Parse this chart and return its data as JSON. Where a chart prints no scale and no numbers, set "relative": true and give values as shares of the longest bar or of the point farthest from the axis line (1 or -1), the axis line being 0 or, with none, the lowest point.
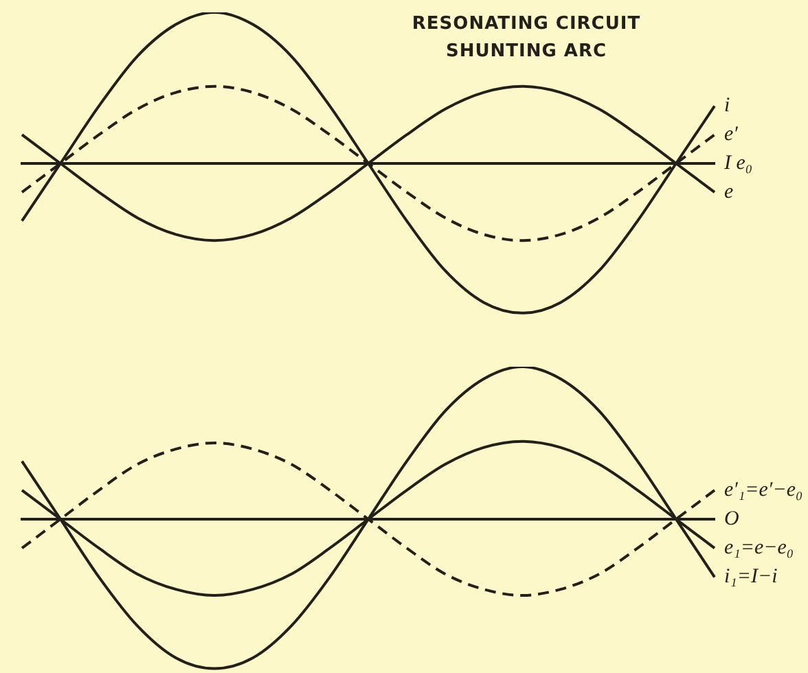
{
  "chart_data": [
    {
      "type": "line",
      "title": "RESONATING CIRCUIT SHUNTING ARC",
      "annotations": [
        "I e₀"
      ],
      "relative": true,
      "legend": false,
      "grid": false,
      "marker": "none",
      "categories": [
        null,
        null,
        null,
        null,
        null,
        null,
        null,
        null,
        null,
        null,
        null,
        null,
        null,
        null,
        null,
        null,
        null,
        null,
        null
      ],
      "series": [
        {
          "name": "i",
          "color": "#231f1a",
          "line_style": "solid",
          "values": [
            -0.38,
            0,
            0.38,
            0.71,
            0.92,
            1,
            0.92,
            0.71,
            0.38,
            0,
            -0.38,
            -0.71,
            -0.92,
            -0.99,
            -0.92,
            -0.71,
            -0.38,
            0,
            0.38
          ]
        },
        {
          "name": "e′",
          "color": "#231f1a",
          "line_style": "dashed",
          "values": [
            -0.19,
            0,
            0.19,
            0.36,
            0.47,
            0.51,
            0.47,
            0.36,
            0.19,
            0,
            -0.19,
            -0.36,
            -0.47,
            -0.51,
            -0.47,
            -0.36,
            -0.19,
            0,
            0.19
          ]
        },
        {
          "name": "e",
          "color": "#231f1a",
          "line_style": "solid",
          "values": [
            0.19,
            0,
            -0.19,
            -0.36,
            -0.47,
            -0.51,
            -0.47,
            -0.36,
            -0.19,
            0,
            0.19,
            0.36,
            0.47,
            0.51,
            0.47,
            0.36,
            0.19,
            0,
            -0.19
          ]
        }
      ]
    },
    {
      "type": "line",
      "annotations": [
        "O"
      ],
      "relative": true,
      "legend": false,
      "grid": false,
      "marker": "none",
      "categories": [
        null,
        null,
        null,
        null,
        null,
        null,
        null,
        null,
        null,
        null,
        null,
        null,
        null,
        null,
        null,
        null,
        null,
        null,
        null
      ],
      "series": [
        {
          "name": "e′₁=e′−e₀",
          "color": "#231f1a",
          "line_style": "dashed",
          "values": [
            -0.19,
            0,
            0.19,
            0.36,
            0.46,
            0.5,
            0.46,
            0.36,
            0.19,
            0,
            -0.19,
            -0.36,
            -0.46,
            -0.5,
            -0.46,
            -0.36,
            -0.19,
            0,
            0.19
          ]
        },
        {
          "name": "e₁=e−e₀",
          "color": "#231f1a",
          "line_style": "solid",
          "values": [
            0.19,
            0,
            -0.19,
            -0.36,
            -0.46,
            -0.5,
            -0.46,
            -0.36,
            -0.19,
            0,
            0.19,
            0.36,
            0.47,
            0.51,
            0.47,
            0.36,
            0.19,
            0,
            -0.19
          ]
        },
        {
          "name": "i₁=I−i",
          "color": "#231f1a",
          "line_style": "solid",
          "values": [
            0.38,
            0,
            -0.38,
            -0.7,
            -0.91,
            -0.98,
            -0.91,
            -0.7,
            -0.38,
            0,
            0.38,
            0.71,
            0.92,
            1,
            0.92,
            0.71,
            0.38,
            0,
            -0.38
          ]
        }
      ]
    }
  ]
}
